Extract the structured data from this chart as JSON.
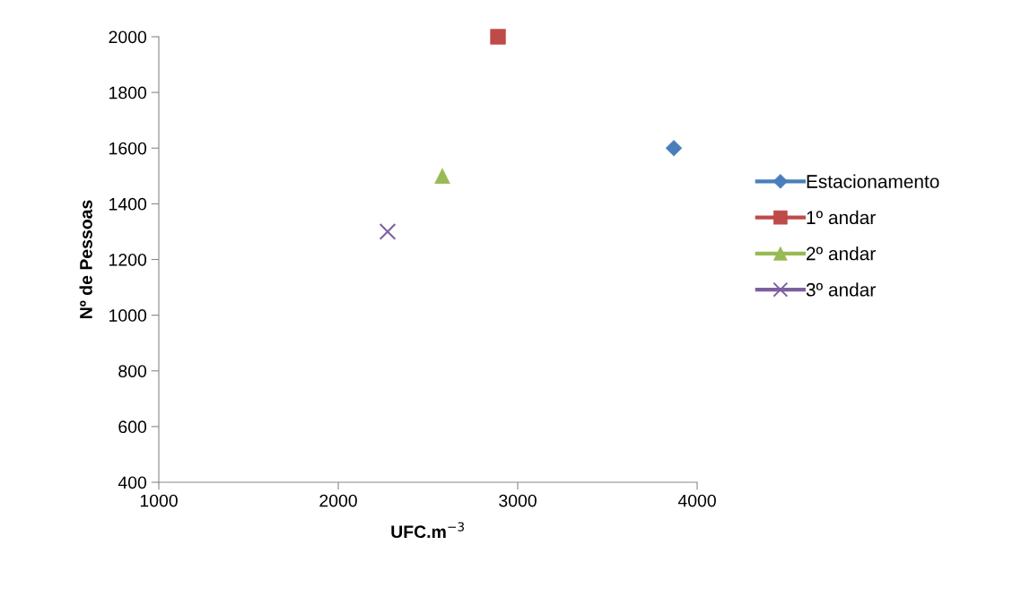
{
  "chart_data": {
    "type": "line",
    "xlabel": "UFC.m$^{−3}$",
    "ylabel": "Nº de Pessoas",
    "xlim": [
      1000,
      4000
    ],
    "xticks": [
      1000,
      2000,
      3000,
      4000
    ],
    "ylim": [
      400,
      2000
    ],
    "yticks": [
      400,
      600,
      800,
      1000,
      1200,
      1400,
      1600,
      1800,
      2000
    ],
    "legend": "right",
    "line_style": "solid",
    "grid": false,
    "series": [
      {
        "name": "Estacionamento",
        "color": "#4a7ebb",
        "marker": "diamond",
        "x": [
          3870
        ],
        "values": [
          1600
        ]
      },
      {
        "name": "1º andar",
        "color": "#be4b48",
        "marker": "square",
        "x": [
          2890
        ],
        "values": [
          2000
        ]
      },
      {
        "name": "2º andar",
        "color": "#98b954",
        "marker": "triangle",
        "x": [
          2580
        ],
        "values": [
          1500
        ]
      },
      {
        "name": "3º andar",
        "color": "#7d60a0",
        "marker": "cross",
        "x": [
          2275
        ],
        "values": [
          1300
        ]
      }
    ]
  }
}
